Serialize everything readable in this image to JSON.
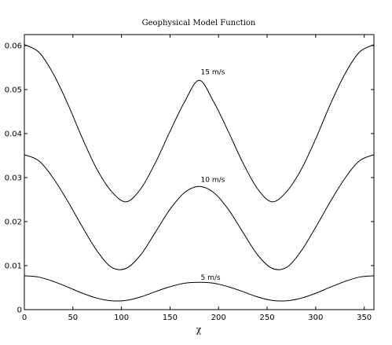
{
  "chart_data": {
    "type": "line",
    "title": "Geophysical Model Function",
    "xlabel": "χ",
    "ylabel": "",
    "xlim": [
      0,
      360
    ],
    "ylim": [
      0,
      0.0625
    ],
    "xticks": [
      0,
      50,
      100,
      150,
      200,
      250,
      300,
      350
    ],
    "xtick_labels": [
      "0",
      "50",
      "100",
      "150",
      "200",
      "250",
      "300",
      "350"
    ],
    "yticks": [
      0,
      0.01,
      0.02,
      0.03,
      0.04,
      0.05,
      0.06
    ],
    "ytick_labels": [
      "0",
      "0.01",
      "0.02",
      "0.03",
      "0.04",
      "0.05",
      "0.06"
    ],
    "grid": false,
    "series": [
      {
        "annotation": "15 m/s",
        "annotation_at": [
          180,
          0.0535
        ],
        "x": [
          0,
          15,
          30,
          45,
          60,
          75,
          90,
          105,
          120,
          135,
          150,
          165,
          180,
          195,
          210,
          225,
          240,
          255,
          270,
          285,
          300,
          315,
          330,
          345,
          360
        ],
        "y": [
          0.0602,
          0.0585,
          0.0535,
          0.0466,
          0.0388,
          0.0318,
          0.0268,
          0.0245,
          0.0275,
          0.0334,
          0.0405,
          0.0472,
          0.0521,
          0.0472,
          0.0405,
          0.0334,
          0.0275,
          0.0245,
          0.0268,
          0.0318,
          0.0388,
          0.0466,
          0.0535,
          0.0585,
          0.0602
        ]
      },
      {
        "annotation": "10 m/s",
        "annotation_at": [
          180,
          0.029
        ],
        "x": [
          0,
          15,
          30,
          45,
          60,
          75,
          90,
          105,
          120,
          135,
          150,
          165,
          180,
          195,
          210,
          225,
          240,
          255,
          270,
          285,
          300,
          315,
          330,
          345,
          360
        ],
        "y": [
          0.0352,
          0.0338,
          0.0298,
          0.0245,
          0.0187,
          0.0133,
          0.0096,
          0.0094,
          0.0125,
          0.0176,
          0.0228,
          0.0266,
          0.028,
          0.0266,
          0.0228,
          0.0176,
          0.0125,
          0.0094,
          0.0096,
          0.0133,
          0.0187,
          0.0245,
          0.0298,
          0.0338,
          0.0352
        ]
      },
      {
        "annotation": "5 m/s",
        "annotation_at": [
          180,
          0.0068
        ],
        "x": [
          0,
          15,
          30,
          45,
          60,
          75,
          90,
          105,
          120,
          135,
          150,
          165,
          180,
          195,
          210,
          225,
          240,
          255,
          270,
          285,
          300,
          315,
          330,
          345,
          360
        ],
        "y": [
          0.0077,
          0.0074,
          0.0064,
          0.0051,
          0.0037,
          0.0026,
          0.002,
          0.0021,
          0.0029,
          0.0041,
          0.0052,
          0.006,
          0.0062,
          0.006,
          0.0052,
          0.0041,
          0.0029,
          0.0021,
          0.002,
          0.0026,
          0.0037,
          0.0051,
          0.0064,
          0.0074,
          0.0077
        ]
      }
    ]
  }
}
